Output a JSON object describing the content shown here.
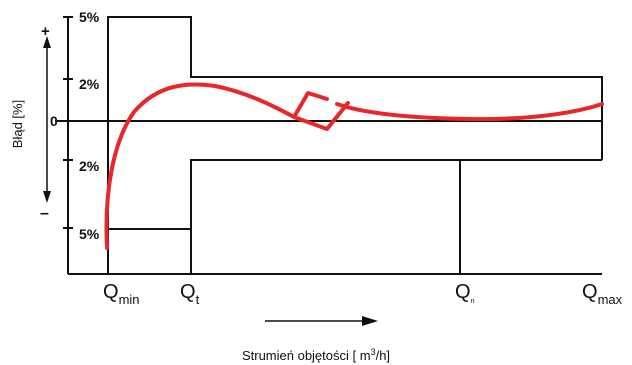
{
  "colors": {
    "curve": "#e8262b",
    "lines": "#111111",
    "background": "#ffffff"
  },
  "y_axis": {
    "label": "Błąd [%]",
    "plus_sign": "+",
    "minus_sign": "–",
    "ticks": [
      "5%",
      "2%",
      "0",
      "2%",
      "5%"
    ]
  },
  "x_axis": {
    "label_prefix": "Strumień objętości [ m",
    "label_superscript": "3",
    "label_suffix": "/h]",
    "points": [
      {
        "main": "Q",
        "sub": "min"
      },
      {
        "main": "Q",
        "sub": "t"
      },
      {
        "main": "Q",
        "sub": "n"
      },
      {
        "main": "Q",
        "sub": "max"
      }
    ]
  }
}
